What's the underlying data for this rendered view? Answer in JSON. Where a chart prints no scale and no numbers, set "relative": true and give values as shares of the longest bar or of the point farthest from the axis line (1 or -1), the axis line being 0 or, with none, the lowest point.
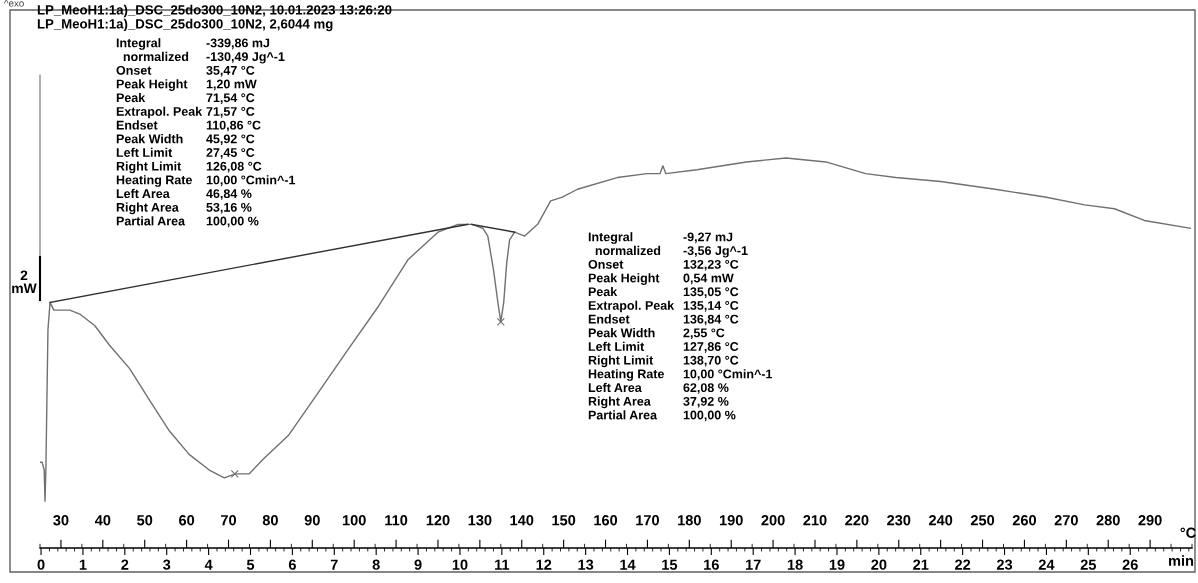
{
  "chart_data": {
    "type": "line",
    "title": "LP_MeoH1:1a)_DSC_25do300_10N2, 10.01.2023 13:26:20",
    "subtitle": "LP_MeoH1:1a)_DSC_25do300_10N2, 2,6044 mg",
    "relative": true,
    "xlabel": "°C",
    "x2label": "min",
    "xlim": [
      25,
      300
    ],
    "xticks": [
      30,
      40,
      50,
      60,
      70,
      80,
      90,
      100,
      110,
      120,
      130,
      140,
      150,
      160,
      170,
      180,
      190,
      200,
      210,
      220,
      230,
      240,
      250,
      260,
      270,
      280,
      290
    ],
    "x2lim": [
      -0.025,
      27.475
    ],
    "x2ticks": [
      0,
      1,
      2,
      3,
      4,
      5,
      6,
      7,
      8,
      9,
      10,
      11,
      12,
      13,
      14,
      15,
      16,
      17,
      18,
      19,
      20,
      21,
      22,
      23,
      24,
      25,
      26
    ],
    "grid": false,
    "legend": false,
    "tick_labels": "x",
    "series": [
      {
        "color": "#707070",
        "x": [
          25.0,
          25.5,
          26.0,
          26.2,
          26.4,
          26.9,
          27.4,
          28.3,
          29.8,
          32.1,
          34.5,
          38.1,
          41.6,
          46.4,
          51.1,
          55.9,
          60.6,
          65.4,
          69.0,
          71.6,
          74.9,
          78.5,
          84.4,
          91.5,
          98.6,
          105.8,
          112.9,
          120.0,
          124.8,
          128.1,
          130.7,
          131.9,
          133.3,
          134.3,
          135.0,
          135.7,
          136.4,
          137.1,
          138.3,
          140.7,
          143.8,
          146.9,
          149.7,
          153.3,
          162.8,
          169.9,
          173.0,
          173.7,
          174.4,
          181.8,
          193.6,
          203.1,
          212.6,
          222.1,
          229.3,
          240.0,
          253.0,
          264.9,
          274.4,
          281.5,
          288.6,
          299.6
        ],
        "values": [
          0.22,
          0.22,
          0.2,
          0.12,
          0.2,
          0.56,
          0.63,
          0.61,
          0.61,
          0.61,
          0.6,
          0.57,
          0.52,
          0.46,
          0.38,
          0.3,
          0.24,
          0.2,
          0.18,
          0.19,
          0.19,
          0.23,
          0.29,
          0.4,
          0.51,
          0.62,
          0.74,
          0.81,
          0.83,
          0.83,
          0.82,
          0.8,
          0.71,
          0.63,
          0.58,
          0.63,
          0.73,
          0.79,
          0.81,
          0.8,
          0.83,
          0.89,
          0.9,
          0.92,
          0.95,
          0.96,
          0.96,
          0.98,
          0.96,
          0.97,
          0.99,
          1.0,
          0.99,
          0.96,
          0.95,
          0.94,
          0.92,
          0.9,
          0.88,
          0.87,
          0.84,
          0.82
        ]
      },
      {
        "color": "#303030",
        "x": [
          27.4,
          127.1
        ],
        "values": [
          0.63,
          0.83
        ]
      },
      {
        "color": "#303030",
        "x": [
          128.1,
          138.3
        ],
        "values": [
          0.83,
          0.81
        ]
      },
      {
        "type": "scatter",
        "color": "#707070",
        "marker": "cross",
        "x": [
          71.5,
          135.0
        ],
        "values": [
          0.19,
          0.58
        ]
      }
    ],
    "annotations": [
      "^exo",
      "2\nmW",
      "Integral",
      "-339,86 mJ",
      "  normalized",
      "-130,49 Jg^-1",
      "Onset",
      "35,47 °C",
      "Peak Height",
      "1,20 mW",
      "Peak",
      "71,54 °C",
      "Extrapol. Peak",
      "71,57 °C",
      "Endset",
      "110,86 °C",
      "Peak Width",
      "45,92 °C",
      "Left Limit",
      "27,45 °C",
      "Right Limit",
      "126,08 °C",
      "Heating Rate",
      "10,00 °Cmin^-1",
      "Left Area",
      "46,84 %",
      "Right Area",
      "53,16 %",
      "Partial Area",
      "100,00 %",
      "Integral",
      "-9,27 mJ",
      "  normalized",
      "-3,56 Jg^-1",
      "Onset",
      "132,23 °C",
      "Peak Height",
      "0,54 mW",
      "Peak",
      "135,05 °C",
      "Extrapol. Peak",
      "135,14 °C",
      "Endset",
      "136,84 °C",
      "Peak Width",
      "2,55 °C",
      "Left Limit",
      "127,86 °C",
      "Right Limit",
      "138,70 °C",
      "Heating Rate",
      "10,00 °Cmin^-1",
      "Left Area",
      "62,08 %",
      "Right Area",
      "37,92 %",
      "Partial Area",
      "100,00 %"
    ]
  }
}
